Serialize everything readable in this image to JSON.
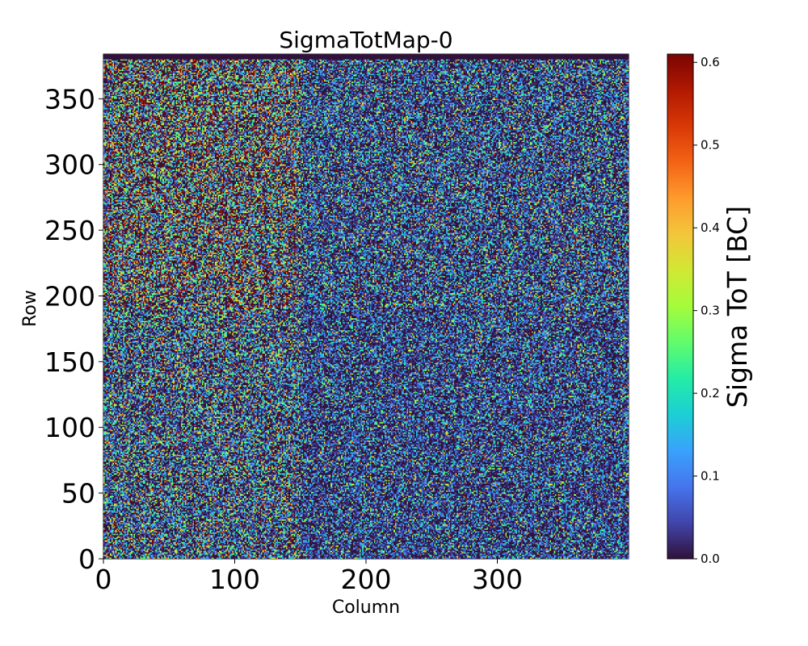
{
  "chart_data": {
    "type": "heatmap",
    "title": "SigmaTotMap-0",
    "xlabel": "Column",
    "ylabel": "Row",
    "colorbar_label": "Sigma ToT [BC]",
    "xlim": [
      0,
      400
    ],
    "ylim": [
      0,
      384
    ],
    "clim": [
      0.0,
      0.61
    ],
    "n_columns": 400,
    "n_rows": 384,
    "x_ticks": [
      0,
      100,
      200,
      300
    ],
    "x_tick_labels": [
      "0",
      "100",
      "200",
      "300"
    ],
    "y_ticks": [
      0,
      50,
      100,
      150,
      200,
      250,
      300,
      350
    ],
    "y_tick_labels": [
      "0",
      "50",
      "100",
      "150",
      "200",
      "250",
      "300",
      "350"
    ],
    "colorbar_ticks": [
      0.0,
      0.1,
      0.2,
      0.3,
      0.4,
      0.5,
      0.6
    ],
    "colorbar_tick_labels": [
      "0.0",
      "0.1",
      "0.2",
      "0.3",
      "0.4",
      "0.5",
      "0.6"
    ],
    "colormap": "turbo",
    "colormap_stops": [
      "#30123b",
      "#4145ab",
      "#4675ed",
      "#39a2fc",
      "#1bcfd4",
      "#24eca6",
      "#61fc6c",
      "#a4fc3b",
      "#d1e834",
      "#f3c63a",
      "#fe9b2d",
      "#f36315",
      "#d93806",
      "#b11901",
      "#7a0402"
    ],
    "region_mean_sigma": {
      "rows_0_to_190_columns_0_to_150": 0.17,
      "rows_190_to_380_columns_0_to_150": 0.28,
      "rows_0_to_190_columns_150_to_400": 0.1,
      "rows_190_to_380_columns_150_to_400": 0.12,
      "row_380_to_384_edge": 0.0
    }
  }
}
